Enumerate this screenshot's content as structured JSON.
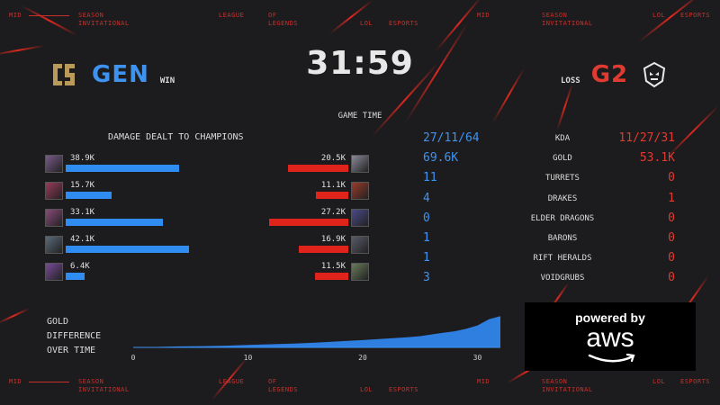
{
  "header": {
    "timer": "31:59",
    "game_time_label": "GAME TIME",
    "blue": {
      "name": "GEN",
      "result": "WIN",
      "color": "#3e93f0"
    },
    "red": {
      "name": "G2",
      "result": "LOSS",
      "color": "#e03b30"
    }
  },
  "deco": {
    "top_left_mid": "MID",
    "top_season": "SEASON",
    "top_invitational": "INVITATIONAL",
    "top_league": "LEAGUE",
    "top_of": "OF",
    "top_legends": "LEGENDS",
    "top_lol": "LOL",
    "top_esports": "ESPORTS",
    "top_right_mid": "MID",
    "top_right_season": "SEASON",
    "top_right_invitational": "INVITATIONAL",
    "top_right_lol": "LOL",
    "top_right_esports": "ESPORTS",
    "bottom_mid": "MID",
    "bottom_season": "SEASON",
    "bottom_invitational": "INVITATIONAL",
    "bottom_league": "LEAGUE",
    "bottom_of": "OF",
    "bottom_legends": "LEGENDS",
    "bottom_lol": "LOL",
    "bottom_esports": "ESPORTS",
    "bottom_right_mid": "MID",
    "bottom_right_season": "SEASON",
    "bottom_right_invitational": "INVITATIONAL",
    "bottom_right_lol": "LOL",
    "bottom_right_esports": "ESPORTS"
  },
  "damage": {
    "title": "DAMAGE DEALT TO CHAMPIONS",
    "blue": [
      {
        "label": "38.9K",
        "value": 38.9,
        "portrait_color": "#7a5a8a"
      },
      {
        "label": "15.7K",
        "value": 15.7,
        "portrait_color": "#9a3a5a"
      },
      {
        "label": "33.1K",
        "value": 33.1,
        "portrait_color": "#8a4a7a"
      },
      {
        "label": "42.1K",
        "value": 42.1,
        "portrait_color": "#5a6a7a"
      },
      {
        "label": "6.4K",
        "value": 6.4,
        "portrait_color": "#7a4a9a"
      }
    ],
    "red": [
      {
        "label": "20.5K",
        "value": 20.5,
        "portrait_color": "#8a8a9a"
      },
      {
        "label": "11.1K",
        "value": 11.1,
        "portrait_color": "#9a3a2a"
      },
      {
        "label": "27.2K",
        "value": 27.2,
        "portrait_color": "#4a4a8a"
      },
      {
        "label": "16.9K",
        "value": 16.9,
        "portrait_color": "#5a5a6a"
      },
      {
        "label": "11.5K",
        "value": 11.5,
        "portrait_color": "#6a7a5a"
      }
    ]
  },
  "stats": [
    {
      "label": "KDA",
      "blue": "27/11/64",
      "red": "11/27/31"
    },
    {
      "label": "GOLD",
      "blue": "69.6K",
      "red": "53.1K"
    },
    {
      "label": "TURRETS",
      "blue": "11",
      "red": "0"
    },
    {
      "label": "DRAKES",
      "blue": "4",
      "red": "1"
    },
    {
      "label": "ELDER DRAGONS",
      "blue": "0",
      "red": "0"
    },
    {
      "label": "BARONS",
      "blue": "1",
      "red": "0"
    },
    {
      "label": "RIFT HERALDS",
      "blue": "1",
      "red": "0"
    },
    {
      "label": "VOIDGRUBS",
      "blue": "3",
      "red": "0"
    }
  ],
  "gold_diff": {
    "label_line1": "GOLD",
    "label_line2": "DIFFERENCE",
    "label_line3": "OVER TIME"
  },
  "chart_data": {
    "type": "area",
    "title": "",
    "xlabel": "",
    "ylabel": "",
    "x_ticks": [
      "0",
      "10",
      "20",
      "30"
    ],
    "xlim": [
      0,
      32
    ],
    "x": [
      0,
      2,
      4,
      6,
      8,
      10,
      12,
      14,
      16,
      18,
      20,
      22,
      24,
      25,
      26,
      27,
      28,
      29,
      30,
      31,
      32
    ],
    "y": [
      0,
      0.2,
      0.4,
      0.5,
      0.7,
      1.0,
      1.3,
      1.6,
      2.0,
      2.5,
      3.0,
      3.6,
      4.2,
      4.6,
      5.3,
      6.0,
      6.6,
      7.6,
      9.0,
      11.5,
      12.8
    ],
    "ylim": [
      0,
      14
    ],
    "color": "#2f7fe0"
  },
  "sponsor": {
    "powered_by": "powered by",
    "brand": "aws"
  }
}
